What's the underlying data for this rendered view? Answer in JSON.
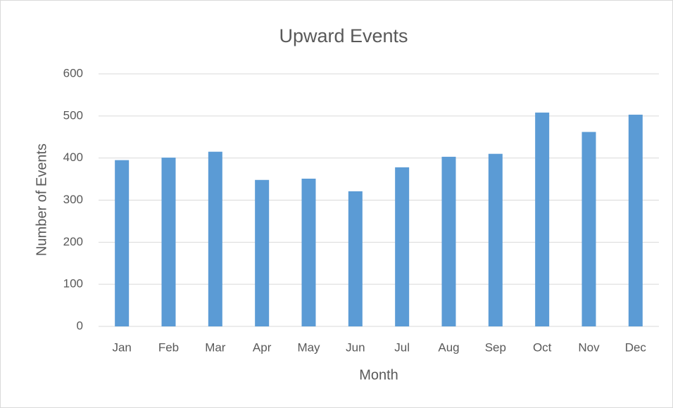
{
  "chart_data": {
    "type": "bar",
    "title": "Upward Events",
    "x_label": "Month",
    "y_label": "Number of Events",
    "categories": [
      "Jan",
      "Feb",
      "Mar",
      "Apr",
      "May",
      "Jun",
      "Jul",
      "Aug",
      "Sep",
      "Oct",
      "Nov",
      "Dec"
    ],
    "values": [
      395,
      401,
      415,
      348,
      351,
      321,
      378,
      403,
      410,
      508,
      462,
      503
    ],
    "color": "#5b9bd5",
    "ylim": [
      0,
      600
    ],
    "yticks": [
      0,
      100,
      200,
      300,
      400,
      500,
      600
    ],
    "grid": true
  }
}
